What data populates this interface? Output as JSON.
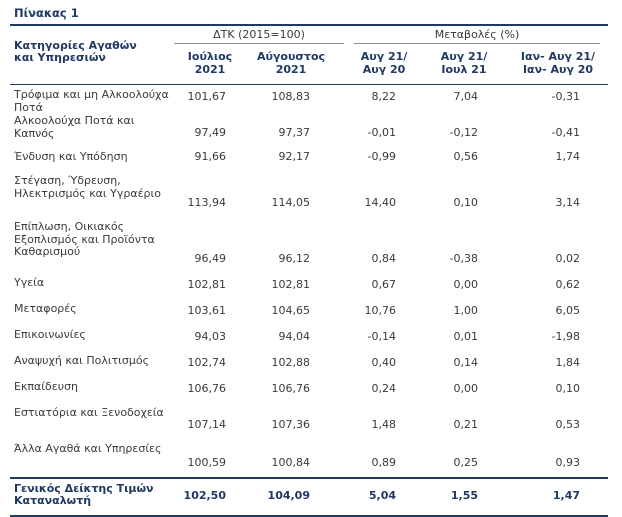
{
  "title": "Πίνακας 1",
  "header": {
    "group1": "ΔΤΚ (2015=100)",
    "group2": "Μεταβολές (%)",
    "category_line1": "Κατηγορίες Αγαθών",
    "category_line2": "και Υπηρεσιών",
    "cols": [
      {
        "l1": "Ιούλιος",
        "l2": "2021"
      },
      {
        "l1": "Αύγουστος",
        "l2": "2021"
      },
      {
        "l1": "Αυγ 21/",
        "l2": "Αυγ 20"
      },
      {
        "l1": "Αυγ 21/",
        "l2": "Ιουλ 21"
      },
      {
        "l1": "Ιαν- Αυγ 21/",
        "l2": "Ιαν- Αυγ 20"
      }
    ]
  },
  "rows": [
    {
      "label": "Τρόφιμα και μη Αλκοολούχα Ποτά",
      "v": [
        "101,67",
        "108,83",
        "8,22",
        "7,04",
        "-0,31"
      ]
    },
    {
      "label": "Αλκοολούχα Ποτά και Καπνός",
      "v": [
        "97,49",
        "97,37",
        "-0,01",
        "-0,12",
        "-0,41"
      ]
    },
    {
      "label": "Ένδυση και Υπόδηση",
      "v": [
        "91,66",
        "92,17",
        "-0,99",
        "0,56",
        "1,74"
      ]
    },
    {
      "label": "Στέγαση, Ύδρευση, Ηλεκτρισμός και Υγραέριο",
      "v": [
        "113,94",
        "114,05",
        "14,40",
        "0,10",
        "3,14"
      ]
    },
    {
      "label": "Επίπλωση, Οικιακός Εξοπλισμός και Προϊόντα Καθαρισμού",
      "v": [
        "96,49",
        "96,12",
        "0,84",
        "-0,38",
        "0,02"
      ]
    },
    {
      "label": "Υγεία",
      "v": [
        "102,81",
        "102,81",
        "0,67",
        "0,00",
        "0,62"
      ]
    },
    {
      "label": "Μεταφορές",
      "v": [
        "103,61",
        "104,65",
        "10,76",
        "1,00",
        "6,05"
      ]
    },
    {
      "label": "Επικοινωνίες",
      "v": [
        "94,03",
        "94,04",
        "-0,14",
        "0,01",
        "-1,98"
      ]
    },
    {
      "label": "Αναψυχή και Πολιτισμός",
      "v": [
        "102,74",
        "102,88",
        "0,40",
        "0,14",
        "1,84"
      ]
    },
    {
      "label": "Εκπαίδευση",
      "v": [
        "106,76",
        "106,76",
        "0,24",
        "0,00",
        "0,10"
      ]
    },
    {
      "label": "Εστιατόρια και Ξενοδοχεία",
      "v": [
        "107,14",
        "107,36",
        "1,48",
        "0,21",
        "0,53"
      ]
    },
    {
      "label": "Άλλα Αγαθά και Υπηρεσίες",
      "v": [
        "100,59",
        "100,84",
        "0,89",
        "0,25",
        "0,93"
      ]
    }
  ],
  "total": {
    "label_line1": "Γενικός Δείκτης Τιμών",
    "label_line2": "Καταναλωτή",
    "v": [
      "102,50",
      "104,09",
      "5,04",
      "1,55",
      "1,47"
    ]
  }
}
